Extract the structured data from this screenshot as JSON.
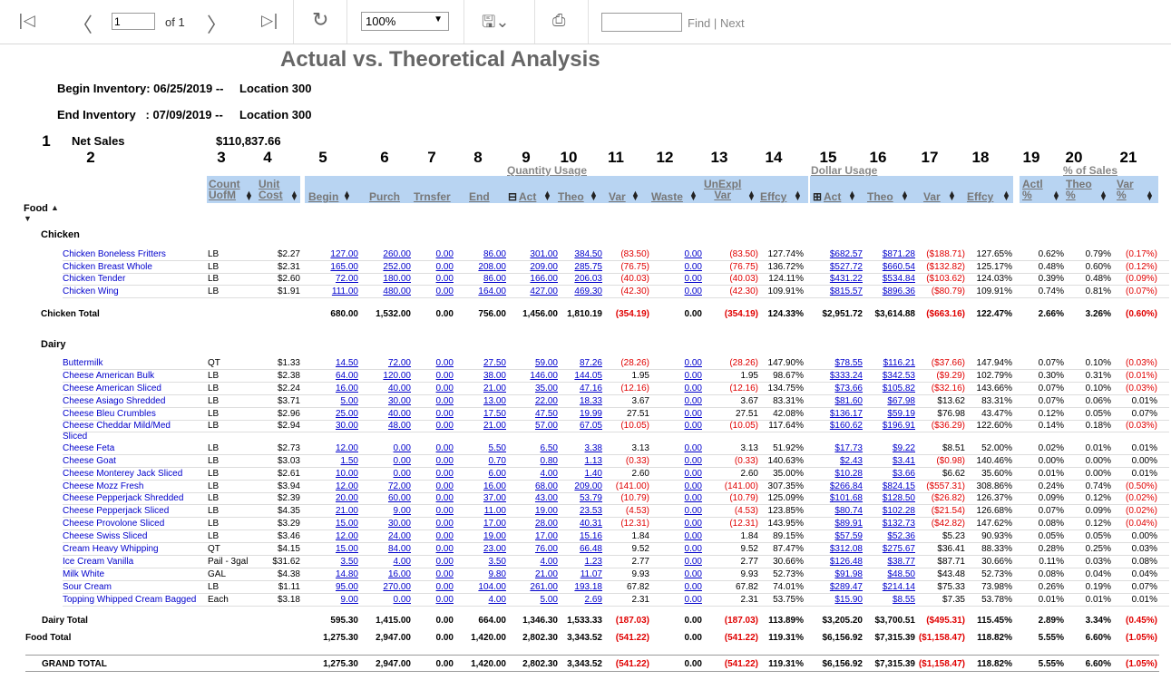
{
  "toolbar": {
    "page": "1",
    "of": "of 1",
    "zoom": "100%",
    "find": "Find",
    "next": "Next",
    "sep": "|"
  },
  "report": {
    "title": "Actual vs. Theoretical Analysis",
    "begin": "Begin Inventory: 06/25/2019 --",
    "end": "End Inventory   : 07/09/2019 --",
    "location1": "Location 300",
    "location2": "Location 300",
    "net_sales_label": "Net Sales",
    "net_sales": "$110,837.66",
    "groups": {
      "qty": "Quantity Usage",
      "dollar": "Dollar Usage",
      "pct": "% of Sales"
    },
    "food_label": "Food",
    "cols": {
      "count": "Count",
      "uofm": "UofM",
      "unit": "Unit",
      "cost": "Cost",
      "begin": "Begin",
      "purch": "Purch",
      "trnsfer": "Trnsfer",
      "end": "End",
      "act": "Act",
      "theo": "Theo",
      "var": "Var",
      "waste": "Waste",
      "unexpl": "UnExpl",
      "unexplvar": "Var",
      "effcy": "Effcy",
      "dact": "Act",
      "dtheo": "Theo",
      "dvar": "Var",
      "deffcy": "Effcy",
      "actl": "Actl",
      "actlp": "%",
      "theop": "Theo",
      "theopp": "%",
      "varp": "Var",
      "varpp": "%"
    },
    "colnums": [
      "1",
      "2",
      "3",
      "4",
      "5",
      "6",
      "7",
      "8",
      "9",
      "10",
      "11",
      "12",
      "13",
      "14",
      "15",
      "16",
      "17",
      "18",
      "19",
      "20",
      "21"
    ]
  },
  "chicken": {
    "name": "Chicken",
    "rows": [
      [
        "Chicken Boneless Fritters",
        "LB",
        "$2.27",
        "127.00",
        "260.00",
        "0.00",
        "86.00",
        "301.00",
        "384.50",
        "(83.50)",
        "0.00",
        "(83.50)",
        "127.74%",
        "$682.57",
        "$871.28",
        "($188.71)",
        "127.65%",
        "0.62%",
        "0.79%",
        "(0.17%)"
      ],
      [
        "Chicken Breast Whole",
        "LB",
        "$2.31",
        "165.00",
        "252.00",
        "0.00",
        "208.00",
        "209.00",
        "285.75",
        "(76.75)",
        "0.00",
        "(76.75)",
        "136.72%",
        "$527.72",
        "$660.54",
        "($132.82)",
        "125.17%",
        "0.48%",
        "0.60%",
        "(0.12%)"
      ],
      [
        "Chicken Tender",
        "LB",
        "$2.60",
        "72.00",
        "180.00",
        "0.00",
        "86.00",
        "166.00",
        "206.03",
        "(40.03)",
        "0.00",
        "(40.03)",
        "124.11%",
        "$431.22",
        "$534.84",
        "($103.62)",
        "124.03%",
        "0.39%",
        "0.48%",
        "(0.09%)"
      ],
      [
        "Chicken Wing",
        "LB",
        "$1.91",
        "111.00",
        "480.00",
        "0.00",
        "164.00",
        "427.00",
        "469.30",
        "(42.30)",
        "0.00",
        "(42.30)",
        "109.91%",
        "$815.57",
        "$896.36",
        "($80.79)",
        "109.91%",
        "0.74%",
        "0.81%",
        "(0.07%)"
      ]
    ],
    "total": [
      "Chicken Total",
      "680.00",
      "1,532.00",
      "0.00",
      "756.00",
      "1,456.00",
      "1,810.19",
      "(354.19)",
      "0.00",
      "(354.19)",
      "124.33%",
      "$2,951.72",
      "$3,614.88",
      "($663.16)",
      "122.47%",
      "2.66%",
      "3.26%",
      "(0.60%)"
    ]
  },
  "dairy": {
    "name": "Dairy",
    "rows": [
      [
        "Buttermilk",
        "QT",
        "$1.33",
        "14.50",
        "72.00",
        "0.00",
        "27.50",
        "59.00",
        "87.26",
        "(28.26)",
        "0.00",
        "(28.26)",
        "147.90%",
        "$78.55",
        "$116.21",
        "($37.66)",
        "147.94%",
        "0.07%",
        "0.10%",
        "(0.03%)"
      ],
      [
        "Cheese American Bulk",
        "LB",
        "$2.38",
        "64.00",
        "120.00",
        "0.00",
        "38.00",
        "146.00",
        "144.05",
        "1.95",
        "0.00",
        "1.95",
        "98.67%",
        "$333.24",
        "$342.53",
        "($9.29)",
        "102.79%",
        "0.30%",
        "0.31%",
        "(0.01%)"
      ],
      [
        "Cheese American Sliced",
        "LB",
        "$2.24",
        "16.00",
        "40.00",
        "0.00",
        "21.00",
        "35.00",
        "47.16",
        "(12.16)",
        "0.00",
        "(12.16)",
        "134.75%",
        "$73.66",
        "$105.82",
        "($32.16)",
        "143.66%",
        "0.07%",
        "0.10%",
        "(0.03%)"
      ],
      [
        "Cheese Asiago Shredded",
        "LB",
        "$3.71",
        "5.00",
        "30.00",
        "0.00",
        "13.00",
        "22.00",
        "18.33",
        "3.67",
        "0.00",
        "3.67",
        "83.31%",
        "$81.60",
        "$67.98",
        "$13.62",
        "83.31%",
        "0.07%",
        "0.06%",
        "0.01%"
      ],
      [
        "Cheese Bleu Crumbles",
        "LB",
        "$2.96",
        "25.00",
        "40.00",
        "0.00",
        "17.50",
        "47.50",
        "19.99",
        "27.51",
        "0.00",
        "27.51",
        "42.08%",
        "$136.17",
        "$59.19",
        "$76.98",
        "43.47%",
        "0.12%",
        "0.05%",
        "0.07%"
      ],
      [
        "Cheese Cheddar Mild/Med",
        "LB",
        "$2.94",
        "30.00",
        "48.00",
        "0.00",
        "21.00",
        "57.00",
        "67.05",
        "(10.05)",
        "0.00",
        "(10.05)",
        "117.64%",
        "$160.62",
        "$196.91",
        "($36.29)",
        "122.60%",
        "0.14%",
        "0.18%",
        "(0.03%)"
      ],
      [
        "Cheese Feta",
        "LB",
        "$2.73",
        "12.00",
        "0.00",
        "0.00",
        "5.50",
        "6.50",
        "3.38",
        "3.13",
        "0.00",
        "3.13",
        "51.92%",
        "$17.73",
        "$9.22",
        "$8.51",
        "52.00%",
        "0.02%",
        "0.01%",
        "0.01%"
      ],
      [
        "Cheese Goat",
        "LB",
        "$3.03",
        "1.50",
        "0.00",
        "0.00",
        "0.70",
        "0.80",
        "1.13",
        "(0.33)",
        "0.00",
        "(0.33)",
        "140.63%",
        "$2.43",
        "$3.41",
        "($0.98)",
        "140.46%",
        "0.00%",
        "0.00%",
        "0.00%"
      ],
      [
        "Cheese Monterey Jack Sliced",
        "LB",
        "$2.61",
        "10.00",
        "0.00",
        "0.00",
        "6.00",
        "4.00",
        "1.40",
        "2.60",
        "0.00",
        "2.60",
        "35.00%",
        "$10.28",
        "$3.66",
        "$6.62",
        "35.60%",
        "0.01%",
        "0.00%",
        "0.01%"
      ],
      [
        "Cheese Mozz Fresh",
        "LB",
        "$3.94",
        "12.00",
        "72.00",
        "0.00",
        "16.00",
        "68.00",
        "209.00",
        "(141.00)",
        "0.00",
        "(141.00)",
        "307.35%",
        "$266.84",
        "$824.15",
        "($557.31)",
        "308.86%",
        "0.24%",
        "0.74%",
        "(0.50%)"
      ],
      [
        "Cheese Pepperjack Shredded",
        "LB",
        "$2.39",
        "20.00",
        "60.00",
        "0.00",
        "37.00",
        "43.00",
        "53.79",
        "(10.79)",
        "0.00",
        "(10.79)",
        "125.09%",
        "$101.68",
        "$128.50",
        "($26.82)",
        "126.37%",
        "0.09%",
        "0.12%",
        "(0.02%)"
      ],
      [
        "Cheese Pepperjack Sliced",
        "LB",
        "$4.35",
        "21.00",
        "9.00",
        "0.00",
        "11.00",
        "19.00",
        "23.53",
        "(4.53)",
        "0.00",
        "(4.53)",
        "123.85%",
        "$80.74",
        "$102.28",
        "($21.54)",
        "126.68%",
        "0.07%",
        "0.09%",
        "(0.02%)"
      ],
      [
        "Cheese Provolone Sliced",
        "LB",
        "$3.29",
        "15.00",
        "30.00",
        "0.00",
        "17.00",
        "28.00",
        "40.31",
        "(12.31)",
        "0.00",
        "(12.31)",
        "143.95%",
        "$89.91",
        "$132.73",
        "($42.82)",
        "147.62%",
        "0.08%",
        "0.12%",
        "(0.04%)"
      ],
      [
        "Cheese Swiss Sliced",
        "LB",
        "$3.46",
        "12.00",
        "24.00",
        "0.00",
        "19.00",
        "17.00",
        "15.16",
        "1.84",
        "0.00",
        "1.84",
        "89.15%",
        "$57.59",
        "$52.36",
        "$5.23",
        "90.93%",
        "0.05%",
        "0.05%",
        "0.00%"
      ],
      [
        "Cream Heavy Whipping",
        "QT",
        "$4.15",
        "15.00",
        "84.00",
        "0.00",
        "23.00",
        "76.00",
        "66.48",
        "9.52",
        "0.00",
        "9.52",
        "87.47%",
        "$312.08",
        "$275.67",
        "$36.41",
        "88.33%",
        "0.28%",
        "0.25%",
        "0.03%"
      ],
      [
        "Ice Cream Vanilla",
        "Pail - 3gal",
        "$31.62",
        "3.50",
        "4.00",
        "0.00",
        "3.50",
        "4.00",
        "1.23",
        "2.77",
        "0.00",
        "2.77",
        "30.66%",
        "$126.48",
        "$38.77",
        "$87.71",
        "30.66%",
        "0.11%",
        "0.03%",
        "0.08%"
      ],
      [
        "Milk White",
        "GAL",
        "$4.38",
        "14.80",
        "16.00",
        "0.00",
        "9.80",
        "21.00",
        "11.07",
        "9.93",
        "0.00",
        "9.93",
        "52.73%",
        "$91.98",
        "$48.50",
        "$43.48",
        "52.73%",
        "0.08%",
        "0.04%",
        "0.04%"
      ],
      [
        "Sour Cream",
        "LB",
        "$1.11",
        "95.00",
        "270.00",
        "0.00",
        "104.00",
        "261.00",
        "193.18",
        "67.82",
        "0.00",
        "67.82",
        "74.01%",
        "$289.47",
        "$214.14",
        "$75.33",
        "73.98%",
        "0.26%",
        "0.19%",
        "0.07%"
      ],
      [
        "Topping Whipped Cream Bagged",
        "Each",
        "$3.18",
        "9.00",
        "0.00",
        "0.00",
        "4.00",
        "5.00",
        "2.69",
        "2.31",
        "0.00",
        "2.31",
        "53.75%",
        "$15.90",
        "$8.55",
        "$7.35",
        "53.78%",
        "0.01%",
        "0.01%",
        "0.01%"
      ]
    ],
    "total": [
      "Dairy Total",
      "595.30",
      "1,415.00",
      "0.00",
      "664.00",
      "1,346.30",
      "1,533.33",
      "(187.03)",
      "0.00",
      "(187.03)",
      "113.89%",
      "$3,205.20",
      "$3,700.51",
      "($495.31)",
      "115.45%",
      "2.89%",
      "3.34%",
      "(0.45%)"
    ]
  },
  "food_total": [
    "Food Total",
    "1,275.30",
    "2,947.00",
    "0.00",
    "1,420.00",
    "2,802.30",
    "3,343.52",
    "(541.22)",
    "0.00",
    "(541.22)",
    "119.31%",
    "$6,156.92",
    "$7,315.39",
    "($1,158.47)",
    "118.82%",
    "5.55%",
    "6.60%",
    "(1.05%)"
  ],
  "grand_total": [
    "GRAND TOTAL",
    "1,275.30",
    "2,947.00",
    "0.00",
    "1,420.00",
    "2,802.30",
    "3,343.52",
    "(541.22)",
    "0.00",
    "(541.22)",
    "119.31%",
    "$6,156.92",
    "$7,315.39",
    "($1,158.47)",
    "118.82%",
    "5.55%",
    "6.60%",
    "(1.05%)"
  ],
  "colors": {
    "link": "#0000cc",
    "negative": "#e00000",
    "header_band": "#b8d4f2",
    "header_text": "#777777"
  }
}
